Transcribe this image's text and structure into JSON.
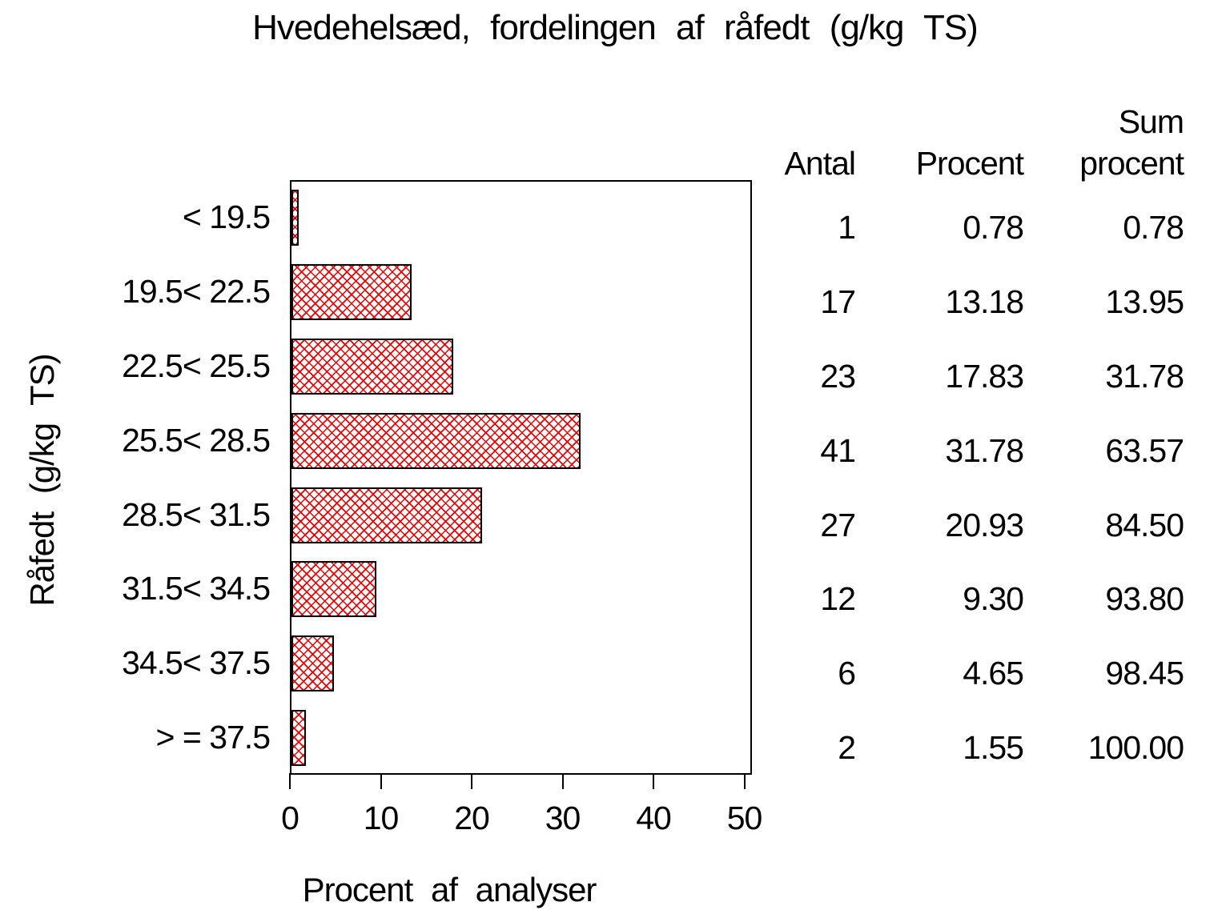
{
  "title": "Hvedehelsæd, fordelingen af råfedt (g/kg TS)",
  "colors": {
    "background": "#ffffff",
    "text": "#000000",
    "axis": "#000000",
    "bar_border": "#000000",
    "bar_hatch_red": "#ee0000"
  },
  "chart_data": {
    "type": "bar",
    "orientation": "horizontal",
    "title": "Hvedehelsæd, fordelingen af råfedt (g/kg TS)",
    "xlabel": "Procent af analyser",
    "ylabel": "Råfedt (g/kg TS)",
    "categories": [
      "< 19.5",
      "19.5< 22.5",
      "22.5< 25.5",
      "25.5< 28.5",
      "28.5< 31.5",
      "31.5< 34.5",
      "34.5< 37.5",
      "> = 37.5"
    ],
    "values": [
      0.78,
      13.18,
      17.83,
      31.78,
      20.93,
      9.3,
      4.65,
      1.55
    ],
    "series": [
      {
        "name": "Antal",
        "values": [
          1,
          17,
          23,
          41,
          27,
          12,
          6,
          2
        ]
      },
      {
        "name": "Procent",
        "values": [
          0.78,
          13.18,
          17.83,
          31.78,
          20.93,
          9.3,
          4.65,
          1.55
        ]
      },
      {
        "name": "Sum procent",
        "values": [
          0.78,
          13.95,
          31.78,
          63.57,
          84.5,
          93.8,
          98.45,
          100.0
        ]
      }
    ],
    "x_ticks": [
      0,
      10,
      20,
      30,
      40,
      50
    ],
    "xlim": [
      0,
      50.8
    ],
    "grid": false,
    "legend": false,
    "bar_style": "red diagonal crosshatch fill with black outline"
  },
  "table": {
    "headers": {
      "antal": "Antal",
      "procent": "Procent",
      "sum_line1": "Sum",
      "sum_line2": "procent"
    },
    "rows": [
      {
        "antal": "1",
        "procent": "0.78",
        "sum": "0.78"
      },
      {
        "antal": "17",
        "procent": "13.18",
        "sum": "13.95"
      },
      {
        "antal": "23",
        "procent": "17.83",
        "sum": "31.78"
      },
      {
        "antal": "41",
        "procent": "31.78",
        "sum": "63.57"
      },
      {
        "antal": "27",
        "procent": "20.93",
        "sum": "84.50"
      },
      {
        "antal": "12",
        "procent": "9.30",
        "sum": "93.80"
      },
      {
        "antal": "6",
        "procent": "4.65",
        "sum": "98.45"
      },
      {
        "antal": "2",
        "procent": "1.55",
        "sum": "100.00"
      }
    ]
  }
}
